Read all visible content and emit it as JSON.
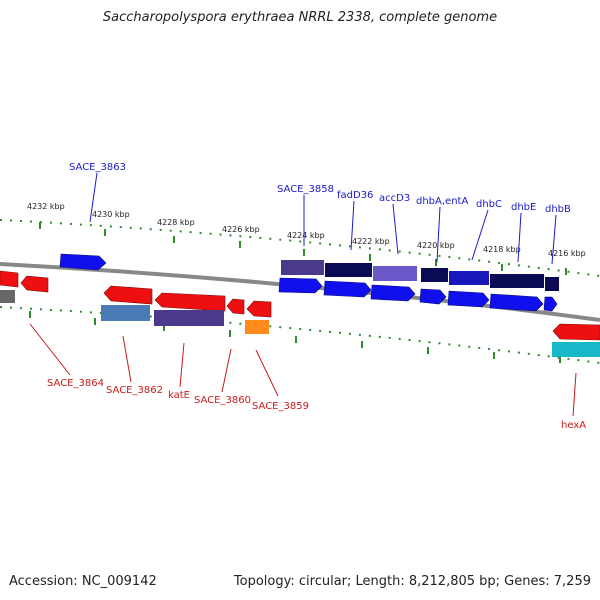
{
  "title": "Saccharopolyspora erythraea NRRL 2338, complete genome",
  "footer": {
    "accession": "Accession: NC_009142",
    "summary": "Topology: circular; Length: 8,212,805 bp; Genes: 7,259"
  },
  "colors": {
    "forward_label": "#1a1acc",
    "reverse_label": "#cc1a1a",
    "tick": "#2e8b2e",
    "backbone": "#888888"
  },
  "ruler": {
    "ticks": [
      "4232 kbp",
      "4230 kbp",
      "4228 kbp",
      "4226 kbp",
      "4224 kbp",
      "4222 kbp",
      "4220 kbp",
      "4218 kbp",
      "4216 kbp"
    ]
  },
  "genes": {
    "forward": [
      "SACE_3863",
      "SACE_3858",
      "fadD36",
      "accD3",
      "dhbA,entA",
      "dhbC",
      "dhbE",
      "dhbB"
    ],
    "reverse": [
      "SACE_3864",
      "SACE_3862",
      "katE",
      "SACE_3860",
      "SACE_3859",
      "hexA"
    ]
  }
}
